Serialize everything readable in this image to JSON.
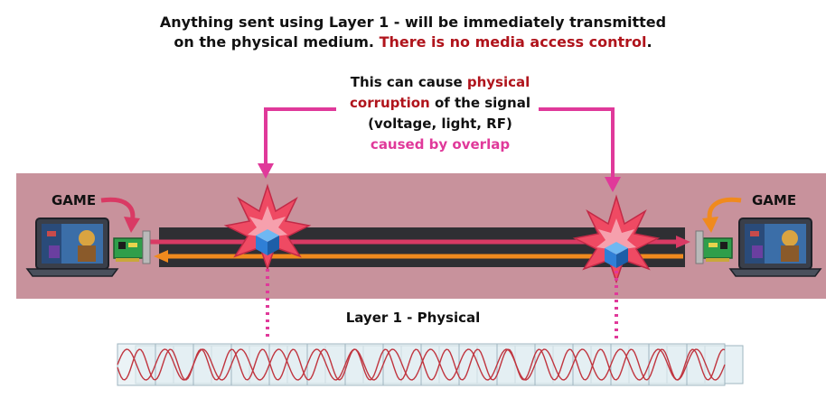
{
  "headline": {
    "line1": "Anything sent using Layer 1 - will be immediately transmitted",
    "line2_prefix": "on the physical medium. ",
    "line2_highlight": "There is no media access control",
    "line2_suffix": "."
  },
  "callout": {
    "line1_prefix": "This can cause ",
    "line1_highlight": "physical",
    "line2_highlight": "corruption",
    "line2_suffix": " of the signal",
    "line3": "(voltage, light, RF)",
    "line4": "caused by overlap"
  },
  "left_host": {
    "label": "GAME"
  },
  "right_host": {
    "label": "GAME"
  },
  "layer": {
    "label": "Layer 1 - Physical"
  },
  "colors": {
    "band": "#c8929c",
    "cable": "#2f2f33",
    "signal_right": "#d93a64",
    "signal_left": "#f08a1e",
    "callout_arrow": "#e0399a",
    "explosion": "#ef4a63",
    "packet": "#2f7fd6"
  }
}
